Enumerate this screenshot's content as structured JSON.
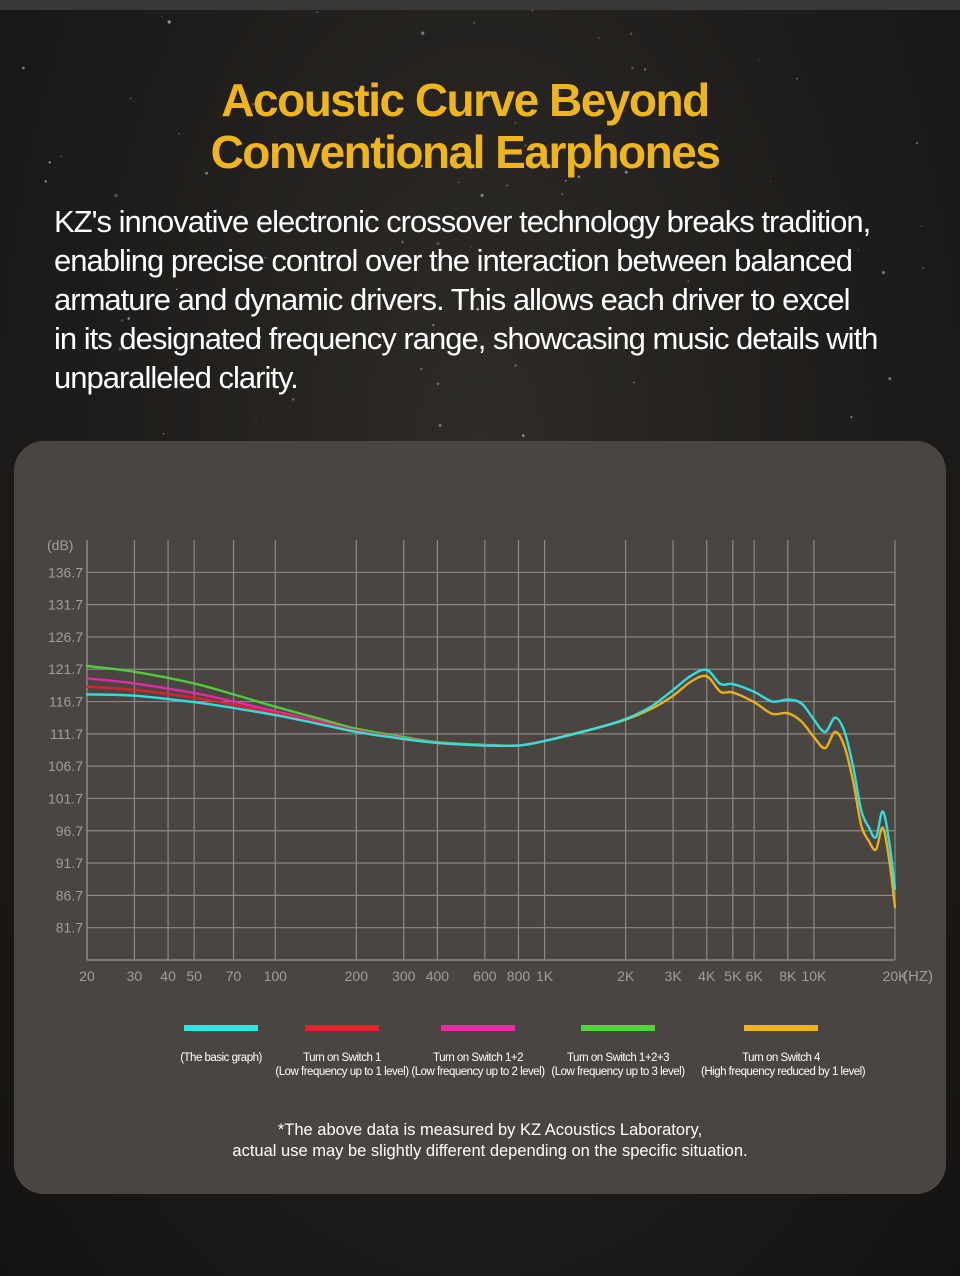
{
  "header": {
    "title_line1": "Acoustic Curve Beyond",
    "title_line2": "Conventional Earphones"
  },
  "description": {
    "lines": [
      "KZ's innovative electronic crossover technology breaks tradition,",
      "enabling precise control over the interaction between balanced",
      "armature and dynamic drivers. This allows each driver to excel",
      "in its designated frequency range, showcasing music details with",
      "unparalleled clarity."
    ]
  },
  "legend": [
    {
      "line1": "",
      "line2": "(The basic graph)",
      "color": "#2ee6e6"
    },
    {
      "line1": "Turn on Switch 1",
      "line2": "(Low frequency up to 1 level)",
      "color": "#e8202c"
    },
    {
      "line1": "Turn on Switch 1+2",
      "line2": "(Low frequency up to 2 level)",
      "color": "#e82aa8"
    },
    {
      "line1": "Turn on Switch 1+2+3",
      "line2": "(Low frequency up to 3 level)",
      "color": "#4fd43a"
    },
    {
      "line1": "Turn on Switch 4",
      "line2": "(High frequency reduced by 1 level)",
      "color": "#f2b418"
    }
  ],
  "note": {
    "line1": "*The above data is measured by KZ Acoustics Laboratory,",
    "line2": "actual use may be slightly different depending on the specific situation."
  },
  "colors": {
    "title": "#f1b51c",
    "panel": "#4a4541",
    "grid": "#8d8984",
    "axis_text": "#a29d98"
  },
  "chart_data": {
    "type": "line",
    "xscale": "log",
    "xlim": [
      20,
      20000
    ],
    "ylim": [
      76.7,
      141.7
    ],
    "ylabel": "(dB)",
    "xlabel": "(HZ)",
    "yticks": [
      136.7,
      131.7,
      126.7,
      121.7,
      116.7,
      111.7,
      106.7,
      101.7,
      96.7,
      91.7,
      86.7,
      81.7
    ],
    "ytick_labels": [
      "136.7",
      "131.7",
      "126.7",
      "121.7",
      "116.7",
      "111.7",
      "106.7",
      "101.7",
      "96.7",
      "91.7",
      "86.7",
      "81.7"
    ],
    "xticks": [
      20,
      30,
      40,
      50,
      70,
      100,
      200,
      300,
      400,
      600,
      800,
      1000,
      2000,
      3000,
      4000,
      5000,
      6000,
      8000,
      10000,
      20000
    ],
    "xtick_labels": [
      "20",
      "30",
      "40",
      "50",
      "70",
      "100",
      "200",
      "300",
      "400",
      "600",
      "800",
      "1K",
      "2K",
      "3K",
      "4K",
      "5K",
      "6K",
      "8K",
      "10K",
      "20K"
    ],
    "grid": true,
    "legend_position": "bottom",
    "series": [
      {
        "name": "(The basic graph)",
        "color": "#2ee6e6",
        "points": [
          [
            20,
            117.8
          ],
          [
            30,
            117.6
          ],
          [
            50,
            116.6
          ],
          [
            70,
            115.7
          ],
          [
            100,
            114.6
          ],
          [
            150,
            113.1
          ],
          [
            200,
            112.0
          ],
          [
            300,
            110.9
          ],
          [
            400,
            110.3
          ],
          [
            600,
            109.9
          ],
          [
            800,
            109.9
          ],
          [
            1000,
            110.6
          ],
          [
            1500,
            112.4
          ],
          [
            2000,
            114.0
          ],
          [
            2500,
            116.0
          ],
          [
            3000,
            118.5
          ],
          [
            3500,
            120.7
          ],
          [
            4000,
            121.6
          ],
          [
            4500,
            119.4
          ],
          [
            5000,
            119.4
          ],
          [
            6000,
            118.2
          ],
          [
            7000,
            116.7
          ],
          [
            8000,
            117.0
          ],
          [
            9000,
            116.4
          ],
          [
            10000,
            113.9
          ],
          [
            11000,
            112.0
          ],
          [
            12000,
            114.2
          ],
          [
            13000,
            112.0
          ],
          [
            14000,
            106.5
          ],
          [
            15000,
            99.8
          ],
          [
            16000,
            97.2
          ],
          [
            17000,
            95.7
          ],
          [
            18000,
            99.7
          ],
          [
            19000,
            95.2
          ],
          [
            20000,
            87.7
          ]
        ]
      },
      {
        "name": "Turn on Switch 1",
        "color": "#e8202c",
        "points": [
          [
            20,
            119.0
          ],
          [
            30,
            118.5
          ],
          [
            50,
            117.3
          ],
          [
            70,
            116.2
          ],
          [
            100,
            114.9
          ],
          [
            150,
            113.3
          ],
          [
            200,
            112.1
          ],
          [
            300,
            110.9
          ],
          [
            400,
            110.3
          ],
          [
            600,
            109.9
          ],
          [
            800,
            109.9
          ],
          [
            1000,
            110.6
          ]
        ]
      },
      {
        "name": "Turn on Switch 1+2",
        "color": "#e82aa8",
        "points": [
          [
            20,
            120.3
          ],
          [
            30,
            119.5
          ],
          [
            50,
            118.0
          ],
          [
            70,
            116.7
          ],
          [
            100,
            115.2
          ],
          [
            150,
            113.5
          ],
          [
            200,
            112.2
          ],
          [
            300,
            111.0
          ],
          [
            400,
            110.3
          ],
          [
            600,
            109.9
          ],
          [
            800,
            109.9
          ],
          [
            1000,
            110.6
          ]
        ]
      },
      {
        "name": "Turn on Switch 1+2+3",
        "color": "#4fd43a",
        "points": [
          [
            20,
            122.2
          ],
          [
            30,
            121.3
          ],
          [
            50,
            119.5
          ],
          [
            70,
            117.8
          ],
          [
            100,
            115.9
          ],
          [
            150,
            113.9
          ],
          [
            200,
            112.5
          ],
          [
            300,
            111.2
          ],
          [
            400,
            110.4
          ],
          [
            600,
            110.0
          ],
          [
            800,
            109.9
          ],
          [
            1000,
            110.6
          ]
        ]
      },
      {
        "name": "Turn on Switch 4",
        "color": "#f2b418",
        "points": [
          [
            1000,
            110.6
          ],
          [
            1500,
            112.4
          ],
          [
            2000,
            113.9
          ],
          [
            2500,
            115.6
          ],
          [
            3000,
            117.6
          ],
          [
            3500,
            119.8
          ],
          [
            4000,
            120.6
          ],
          [
            4500,
            118.2
          ],
          [
            5000,
            118.1
          ],
          [
            6000,
            116.6
          ],
          [
            7000,
            114.8
          ],
          [
            8000,
            114.9
          ],
          [
            9000,
            113.6
          ],
          [
            10000,
            111.2
          ],
          [
            11000,
            109.5
          ],
          [
            12000,
            112.0
          ],
          [
            13000,
            109.7
          ],
          [
            14000,
            104.2
          ],
          [
            15000,
            97.5
          ],
          [
            16000,
            95.1
          ],
          [
            17000,
            93.8
          ],
          [
            18000,
            97.2
          ],
          [
            19000,
            92.4
          ],
          [
            20000,
            84.9
          ]
        ]
      }
    ]
  }
}
